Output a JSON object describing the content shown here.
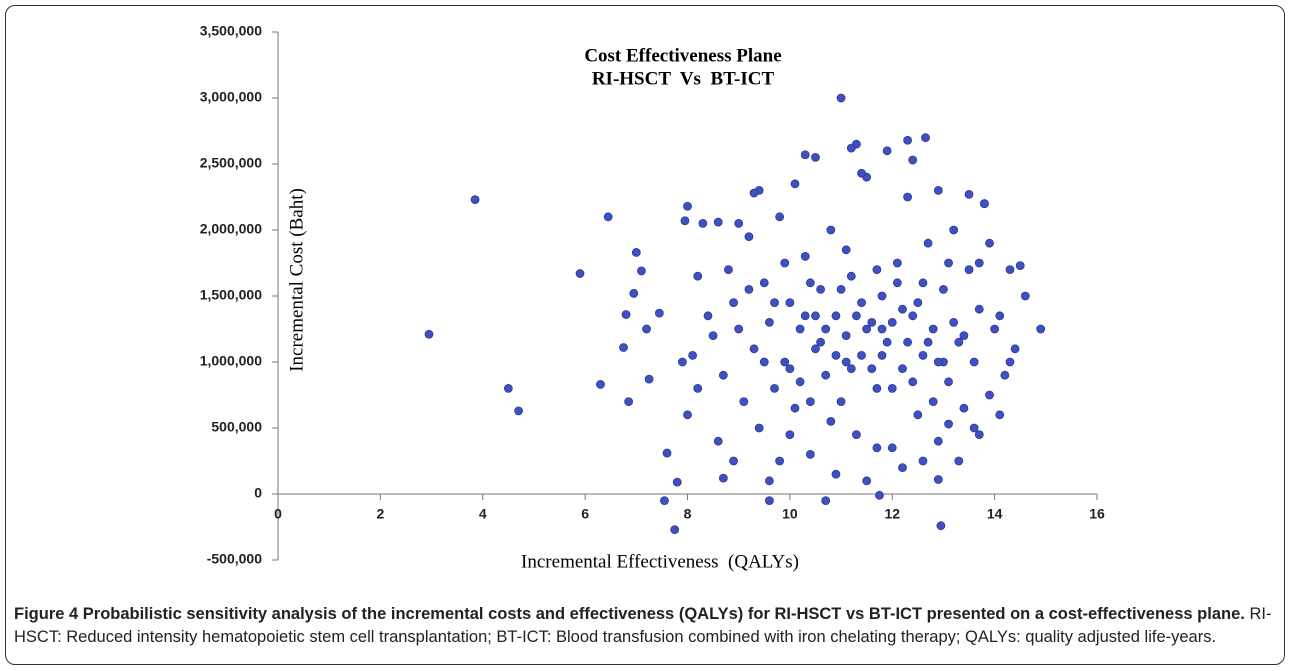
{
  "chart_data": {
    "type": "scatter",
    "title": "Cost Effectiveness Plane",
    "subtitle": "RI-HSCT  Vs  BT-ICT",
    "x_label": "Incremental Effectiveness  (QALYs)",
    "y_label": "Incremental Cost (Baht)",
    "color": "#3f51c0",
    "xlim": [
      0,
      16
    ],
    "xticks": [
      0,
      2,
      4,
      6,
      8,
      10,
      12,
      14,
      16
    ],
    "ylim": [
      -500000,
      3500000
    ],
    "yticks": [
      {
        "value": -500000,
        "label": "-500,000"
      },
      0,
      {
        "value": 500000,
        "label": "500,000"
      },
      {
        "value": 1000000,
        "label": "1,000,000"
      },
      {
        "value": 1500000,
        "label": "1,500,000"
      },
      {
        "value": 2000000,
        "label": "2,000,000"
      },
      {
        "value": 2500000,
        "label": "2,500,000"
      },
      {
        "value": 3000000,
        "label": "3,000,000"
      },
      {
        "value": 3500000,
        "label": "3,500,000"
      }
    ],
    "x": [
      2.95,
      3.85,
      4.5,
      4.7,
      5.9,
      6.45,
      6.3,
      6.85,
      6.75,
      7.0,
      7.1,
      6.95,
      6.8,
      7.2,
      7.25,
      7.45,
      7.6,
      7.55,
      7.75,
      7.8,
      11.0,
      12.65,
      11.75,
      12.95,
      14.9,
      14.5,
      10.7,
      9.6,
      8.0,
      7.95,
      8.2,
      8.5,
      8.7,
      8.9,
      9.1,
      9.2,
      9.3,
      9.4,
      9.5,
      9.6,
      9.7,
      9.8,
      9.9,
      10.0,
      10.1,
      10.2,
      10.3,
      10.4,
      10.5,
      10.6,
      10.7,
      10.8,
      10.9,
      11.0,
      11.1,
      11.2,
      11.3,
      11.4,
      11.5,
      11.6,
      11.7,
      11.8,
      11.9,
      12.0,
      12.1,
      12.2,
      12.3,
      12.4,
      12.5,
      12.6,
      12.7,
      12.8,
      12.9,
      13.0,
      13.1,
      13.2,
      13.3,
      13.4,
      13.5,
      13.6,
      13.7,
      13.8,
      13.9,
      14.0,
      14.2,
      14.4,
      14.6,
      14.3,
      14.1,
      8.3,
      8.6,
      8.8,
      9.0,
      9.4,
      9.8,
      10.1,
      10.5,
      11.3,
      11.9,
      12.3,
      12.9,
      13.5,
      10.9,
      11.5,
      12.2,
      13.3,
      8.9,
      9.2,
      10.0,
      10.3,
      10.6,
      10.8,
      11.1,
      11.4,
      11.6,
      11.8,
      12.0,
      12.1,
      12.4,
      12.5,
      12.7,
      12.8,
      13.0,
      13.2,
      13.6,
      13.9,
      9.5,
      9.9,
      10.2,
      10.4,
      10.7,
      11.0,
      11.2,
      11.5,
      11.7,
      12.0,
      12.2,
      12.6,
      12.9,
      13.1,
      13.4,
      10.9,
      11.3,
      11.8,
      11.1,
      12.3,
      10.5,
      9.7,
      8.4,
      8.1,
      8.0,
      8.2,
      7.9,
      8.6,
      9.0,
      9.3,
      10.3,
      11.2,
      11.4,
      12.4,
      13.8,
      14.3,
      14.1,
      13.7,
      8.7,
      9.6,
      10.0,
      10.4,
      11.7,
      12.6,
      13.1,
      13.7,
      12.9
    ],
    "values": [
      1210000,
      2230000,
      800000,
      630000,
      1670000,
      2100000,
      830000,
      700000,
      1110000,
      1830000,
      1690000,
      1520000,
      1360000,
      1250000,
      870000,
      1370000,
      310000,
      -50000,
      -270000,
      90000,
      3000000,
      2700000,
      -10000,
      -240000,
      1250000,
      1730000,
      -50000,
      -50000,
      2180000,
      2070000,
      1650000,
      1200000,
      900000,
      1450000,
      700000,
      1950000,
      1100000,
      500000,
      1600000,
      1300000,
      800000,
      2100000,
      1000000,
      1450000,
      650000,
      1250000,
      1800000,
      300000,
      1100000,
      1550000,
      900000,
      2000000,
      1350000,
      700000,
      1200000,
      1650000,
      450000,
      1050000,
      2400000,
      1300000,
      800000,
      1500000,
      1150000,
      350000,
      1750000,
      950000,
      2250000,
      1350000,
      600000,
      1050000,
      1900000,
      1250000,
      400000,
      1550000,
      850000,
      2000000,
      1150000,
      650000,
      1700000,
      1000000,
      1400000,
      2200000,
      750000,
      1250000,
      900000,
      1100000,
      1500000,
      1700000,
      600000,
      2050000,
      400000,
      1700000,
      1250000,
      2300000,
      250000,
      2350000,
      2550000,
      2650000,
      2600000,
      2680000,
      2300000,
      2270000,
      150000,
      100000,
      200000,
      250000,
      250000,
      1550000,
      950000,
      1350000,
      1150000,
      550000,
      1850000,
      1450000,
      950000,
      1050000,
      1300000,
      1600000,
      850000,
      1450000,
      1150000,
      700000,
      1000000,
      1300000,
      500000,
      1900000,
      1000000,
      1750000,
      850000,
      1600000,
      1250000,
      1550000,
      950000,
      1250000,
      1700000,
      800000,
      1400000,
      1600000,
      1000000,
      1750000,
      1200000,
      1050000,
      1350000,
      1250000,
      1000000,
      1150000,
      1350000,
      1450000,
      1350000,
      1050000,
      600000,
      800000,
      1000000,
      2060000,
      2050000,
      2280000,
      2570000,
      2620000,
      2430000,
      2530000,
      2200000,
      1000000,
      1350000,
      1750000,
      120000,
      100000,
      450000,
      700000,
      350000,
      250000,
      530000,
      450000,
      110000
    ]
  },
  "caption": {
    "title": "Figure 4 Probabilistic sensitivity analysis of the incremental costs and effectiveness (QALYs) for RI-HSCT vs BT-ICT presented on a cost-effectiveness plane.",
    "text": "RI-HSCT: Reduced intensity hematopoietic stem cell transplantation; BT-ICT: Blood transfusion combined with iron chelating therapy; QALYs: quality adjusted life-years."
  }
}
